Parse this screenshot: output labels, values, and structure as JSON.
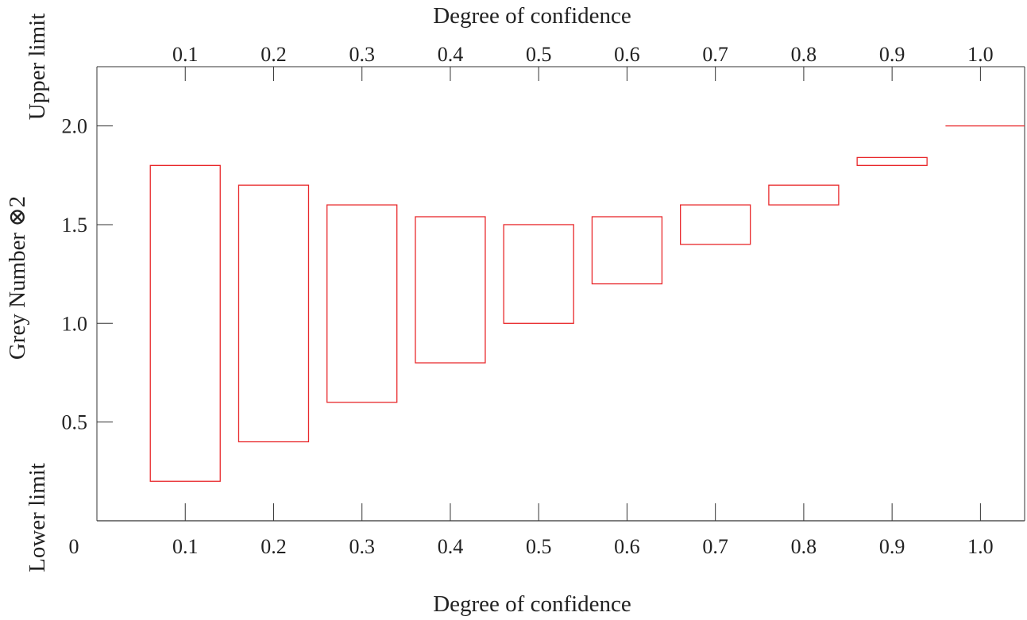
{
  "chart_data": {
    "type": "floating-bar",
    "top_axis_title": "Degree of confidence",
    "bottom_axis_title": "Degree of confidence",
    "y_axis_title": "Grey Number ⊗2",
    "upper_limit_label": "Upper limit",
    "lower_limit_label": "Lower limit",
    "origin_label": "0",
    "x_range": [
      0,
      1.05
    ],
    "y_range": [
      0,
      2.3
    ],
    "grid": false,
    "categories": [
      "0.1",
      "0.2",
      "0.3",
      "0.4",
      "0.5",
      "0.6",
      "0.7",
      "0.8",
      "0.9",
      "1.0"
    ],
    "x_values": [
      0.1,
      0.2,
      0.3,
      0.4,
      0.5,
      0.6,
      0.7,
      0.8,
      0.9,
      1.0
    ],
    "y_ticks": [
      0.5,
      1.0,
      1.5,
      2.0
    ],
    "y_tick_labels": [
      "0.5",
      "1.0",
      "1.5",
      "2.0"
    ],
    "lower": [
      0.2,
      0.4,
      0.6,
      0.8,
      1.0,
      1.2,
      1.4,
      1.6,
      1.8,
      2.0
    ],
    "upper": [
      1.8,
      1.7,
      1.6,
      1.54,
      1.5,
      1.54,
      1.6,
      1.7,
      1.84,
      2.0
    ],
    "box_color": "#e8282b",
    "axis_color": "#333333"
  }
}
